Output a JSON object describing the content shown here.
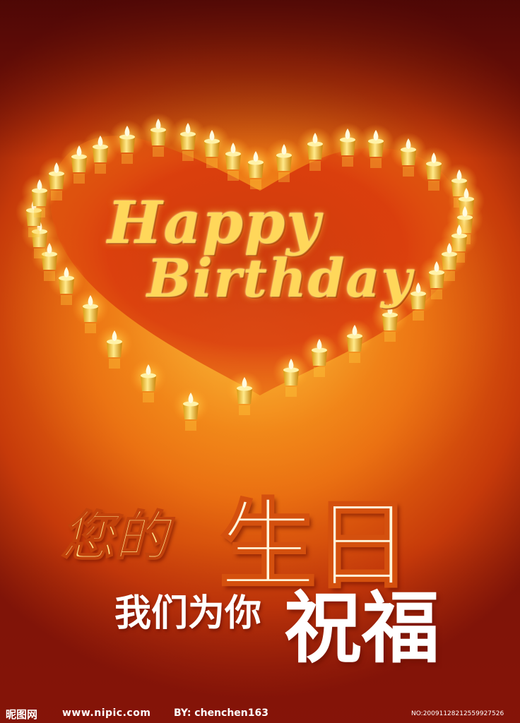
{
  "poster": {
    "script_line1": "Happy",
    "script_line2": "Birthday",
    "headline_small": "您的",
    "headline_big": "生日",
    "subline_small": "我们为你",
    "subline_big": "祝福"
  },
  "footer": {
    "brand": "昵图网",
    "site": "www.nipic.com",
    "by": "BY: chenchen163",
    "number": "NO:20091128212559927526"
  },
  "colors": {
    "background_center": "#f59a1c",
    "background_edge": "#7d1407",
    "heart_interior": "#d8360c",
    "candle": "#ffd23c",
    "flame": "#fffbe0",
    "script_text": "#ffd75a"
  },
  "icons": [
    "candle-icon",
    "flame-icon"
  ]
}
